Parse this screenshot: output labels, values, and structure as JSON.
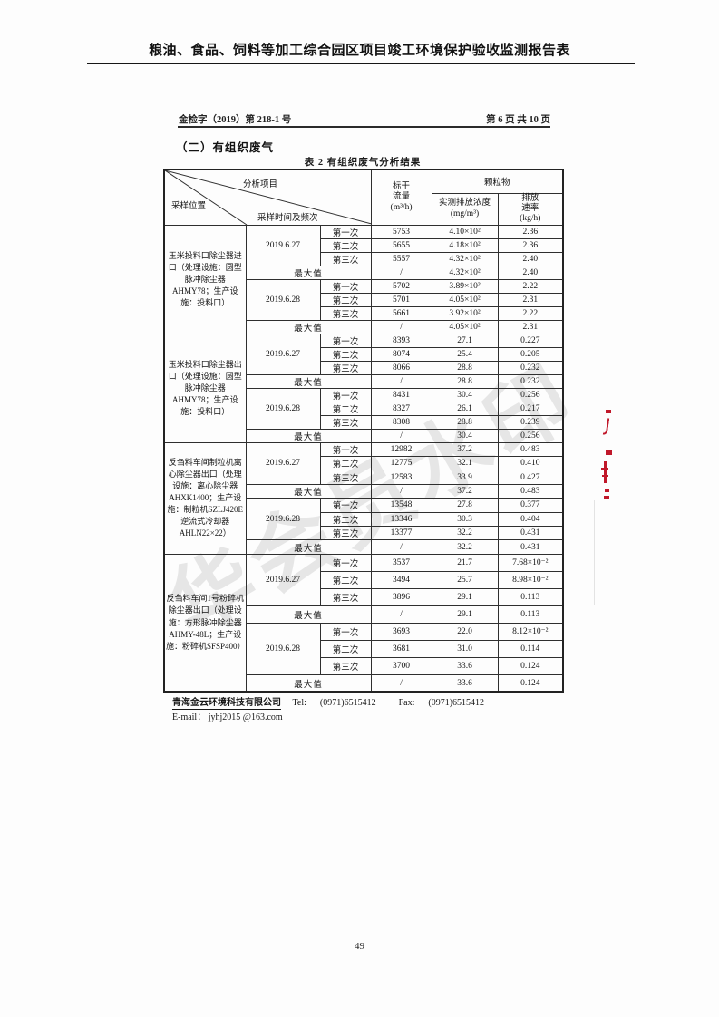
{
  "header": {
    "report_title": "粮油、食品、饲料等加工综合园区项目竣工环境保护验收监测报告表",
    "doc_number": "金检字（2019）第 218-1 号",
    "page_indicator": "第 6 页 共 10 页"
  },
  "section": {
    "title": "（二）有组织废气",
    "table_caption": "表 2 有组织废气分析结果"
  },
  "table": {
    "corner": {
      "analysis_item": "分析项目",
      "sampling_location": "采样位置",
      "sampling_time": "采样时间及频次"
    },
    "headers": {
      "flow_line1": "标干",
      "flow_line2": "流量",
      "flow_unit": "(m³/h)",
      "particulate": "颗粒物",
      "concentration": "实测排放浓度",
      "concentration_unit": "(mg/m³)",
      "rate_line1": "排放",
      "rate_line2": "速率",
      "rate_unit": "(kg/h)"
    },
    "max_label": "最大值",
    "blocks": [
      {
        "location": "玉米投料口除尘器进口（处理设施：圆型脉冲除尘器AHMY78；生产设施：投料口）",
        "groups": [
          {
            "date": "2019.6.27",
            "runs": [
              {
                "seq": "第一次",
                "flow": "5753",
                "conc": "4.10×10²",
                "rate": "2.36"
              },
              {
                "seq": "第二次",
                "flow": "5655",
                "conc": "4.18×10²",
                "rate": "2.36"
              },
              {
                "seq": "第三次",
                "flow": "5557",
                "conc": "4.32×10²",
                "rate": "2.40"
              }
            ],
            "max": {
              "flow": "/",
              "conc": "4.32×10²",
              "rate": "2.40"
            }
          },
          {
            "date": "2019.6.28",
            "runs": [
              {
                "seq": "第一次",
                "flow": "5702",
                "conc": "3.89×10²",
                "rate": "2.22"
              },
              {
                "seq": "第二次",
                "flow": "5701",
                "conc": "4.05×10²",
                "rate": "2.31"
              },
              {
                "seq": "第三次",
                "flow": "5661",
                "conc": "3.92×10²",
                "rate": "2.22"
              }
            ],
            "max": {
              "flow": "/",
              "conc": "4.05×10²",
              "rate": "2.31"
            }
          }
        ]
      },
      {
        "location": "玉米投料口除尘器出口（处理设施：圆型脉冲除尘器AHMY78；生产设施：投料口）",
        "groups": [
          {
            "date": "2019.6.27",
            "runs": [
              {
                "seq": "第一次",
                "flow": "8393",
                "conc": "27.1",
                "rate": "0.227"
              },
              {
                "seq": "第二次",
                "flow": "8074",
                "conc": "25.4",
                "rate": "0.205"
              },
              {
                "seq": "第三次",
                "flow": "8066",
                "conc": "28.8",
                "rate": "0.232"
              }
            ],
            "max": {
              "flow": "/",
              "conc": "28.8",
              "rate": "0.232"
            }
          },
          {
            "date": "2019.6.28",
            "runs": [
              {
                "seq": "第一次",
                "flow": "8431",
                "conc": "30.4",
                "rate": "0.256"
              },
              {
                "seq": "第二次",
                "flow": "8327",
                "conc": "26.1",
                "rate": "0.217"
              },
              {
                "seq": "第三次",
                "flow": "8308",
                "conc": "28.8",
                "rate": "0.239"
              }
            ],
            "max": {
              "flow": "/",
              "conc": "30.4",
              "rate": "0.256"
            }
          }
        ]
      },
      {
        "location": "反刍料车间制粒机离心除尘器出口（处理设施：离心除尘器AHXK1400；生产设施：制粒机SZLJ420E 逆流式冷却器AHLN22×22）",
        "groups": [
          {
            "date": "2019.6.27",
            "runs": [
              {
                "seq": "第一次",
                "flow": "12982",
                "conc": "37.2",
                "rate": "0.483"
              },
              {
                "seq": "第二次",
                "flow": "12775",
                "conc": "32.1",
                "rate": "0.410"
              },
              {
                "seq": "第三次",
                "flow": "12583",
                "conc": "33.9",
                "rate": "0.427"
              }
            ],
            "max": {
              "flow": "/",
              "conc": "37.2",
              "rate": "0.483"
            }
          },
          {
            "date": "2019.6.28",
            "runs": [
              {
                "seq": "第一次",
                "flow": "13548",
                "conc": "27.8",
                "rate": "0.377"
              },
              {
                "seq": "第二次",
                "flow": "13346",
                "conc": "30.3",
                "rate": "0.404"
              },
              {
                "seq": "第三次",
                "flow": "13377",
                "conc": "32.2",
                "rate": "0.431"
              }
            ],
            "max": {
              "flow": "/",
              "conc": "32.2",
              "rate": "0.431"
            }
          }
        ]
      },
      {
        "location": "反刍料车间1号粉碎机除尘器出口（处理设施：方形脉冲除尘器AHMY-48L；生产设施：粉碎机SFSP400）",
        "groups": [
          {
            "date": "2019.6.27",
            "runs": [
              {
                "seq": "第一次",
                "flow": "3537",
                "conc": "21.7",
                "rate": "7.68×10⁻²"
              },
              {
                "seq": "第二次",
                "flow": "3494",
                "conc": "25.7",
                "rate": "8.98×10⁻²"
              },
              {
                "seq": "第三次",
                "flow": "3896",
                "conc": "29.1",
                "rate": "0.113"
              }
            ],
            "max": {
              "flow": "/",
              "conc": "29.1",
              "rate": "0.113"
            }
          },
          {
            "date": "2019.6.28",
            "runs": [
              {
                "seq": "第一次",
                "flow": "3693",
                "conc": "22.0",
                "rate": "8.12×10⁻²"
              },
              {
                "seq": "第二次",
                "flow": "3681",
                "conc": "31.0",
                "rate": "0.114"
              },
              {
                "seq": "第三次",
                "flow": "3700",
                "conc": "33.6",
                "rate": "0.124"
              }
            ],
            "max": {
              "flow": "/",
              "conc": "33.6",
              "rate": "0.124"
            }
          }
        ]
      }
    ]
  },
  "footer": {
    "company": "青海金云环境科技有限公司",
    "tel_label": "Tel:",
    "tel": "(0971)6515412",
    "fax_label": "Fax:",
    "fax": "(0971)6515412",
    "email_label": "E-mail：",
    "email": "jyhj2015 @163.com"
  },
  "page_number": "49",
  "watermark_text": "华会员水印",
  "colors": {
    "seal_red": "#c0182a",
    "border": "#2f2f2f",
    "watermark_gray": "#969696"
  }
}
